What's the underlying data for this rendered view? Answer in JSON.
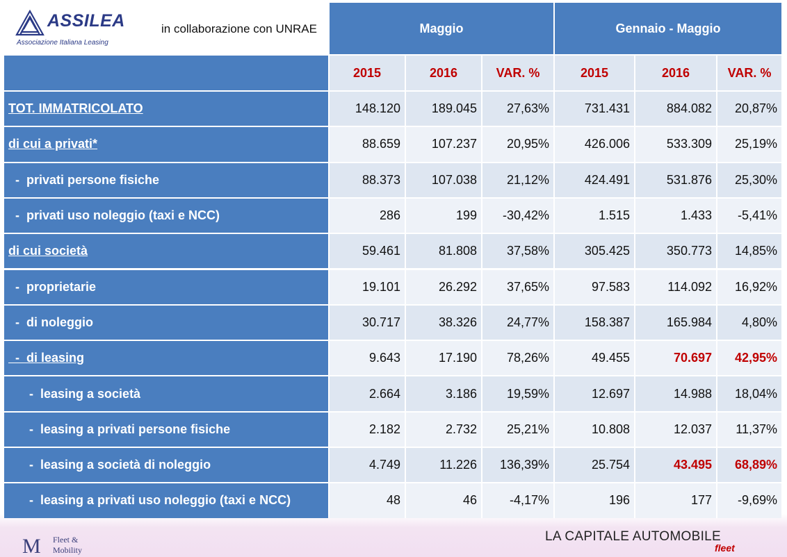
{
  "header": {
    "logo_name": "ASSILEA",
    "logo_sub": "Associazione Italiana Leasing",
    "collaboration": "in collaborazione con UNRAE",
    "group_1": "Maggio",
    "group_2": "Gennaio - Maggio"
  },
  "columns": [
    "2015",
    "2016",
    "VAR. %",
    "2015",
    "2016",
    "VAR. %"
  ],
  "rows": [
    {
      "label": "TOT. IMMATRICOLATO",
      "values": [
        "148.120",
        "189.045",
        "27,63%",
        "731.431",
        "884.082",
        "20,87%"
      ]
    },
    {
      "label": "di cui a privati*",
      "values": [
        "88.659",
        "107.237",
        "20,95%",
        "426.006",
        "533.309",
        "25,19%"
      ]
    },
    {
      "label": "  -  privati persone fisiche",
      "values": [
        "88.373",
        "107.038",
        "21,12%",
        "424.491",
        "531.876",
        "25,30%"
      ]
    },
    {
      "label": "  -  privati uso noleggio (taxi e NCC)",
      "values": [
        "286",
        "199",
        "-30,42%",
        "1.515",
        "1.433",
        "-5,41%"
      ]
    },
    {
      "label": "di cui società",
      "values": [
        "59.461",
        "81.808",
        "37,58%",
        "305.425",
        "350.773",
        "14,85%"
      ]
    },
    {
      "label": "  -  proprietarie",
      "values": [
        "19.101",
        "26.292",
        "37,65%",
        "97.583",
        "114.092",
        "16,92%"
      ]
    },
    {
      "label": "  -  di noleggio",
      "values": [
        "30.717",
        "38.326",
        "24,77%",
        "158.387",
        "165.984",
        "4,80%"
      ]
    },
    {
      "label": "  -  di leasing",
      "values": [
        "9.643",
        "17.190",
        "78,26%",
        "49.455",
        "70.697",
        "42,95%"
      ]
    },
    {
      "label": "      -  leasing a società",
      "values": [
        "2.664",
        "3.186",
        "19,59%",
        "12.697",
        "14.988",
        "18,04%"
      ]
    },
    {
      "label": "      -  leasing a privati persone fisiche",
      "values": [
        "2.182",
        "2.732",
        "25,21%",
        "10.808",
        "12.037",
        "11,37%"
      ]
    },
    {
      "label": "      -  leasing a società di noleggio",
      "values": [
        "4.749",
        "11.226",
        "136,39%",
        "25.754",
        "43.495",
        "68,89%"
      ]
    },
    {
      "label": "      -  leasing a privati uso noleggio (taxi e NCC)",
      "values": [
        "48",
        "46",
        "-4,17%",
        "196",
        "177",
        "-9,69%"
      ]
    }
  ],
  "footer": {
    "left_mark": "M",
    "left_text_1": "Fleet &",
    "left_text_2": "Mobility",
    "right_title": "LA CAPITALE AUTOMOBILE",
    "right_sub": "fleet"
  },
  "colors": {
    "header_blue": "#4a7ebf",
    "row_light": "#dee6f1",
    "row_lighter": "#eef2f8",
    "accent_red": "#c00000",
    "logo_navy": "#2b3a86"
  }
}
